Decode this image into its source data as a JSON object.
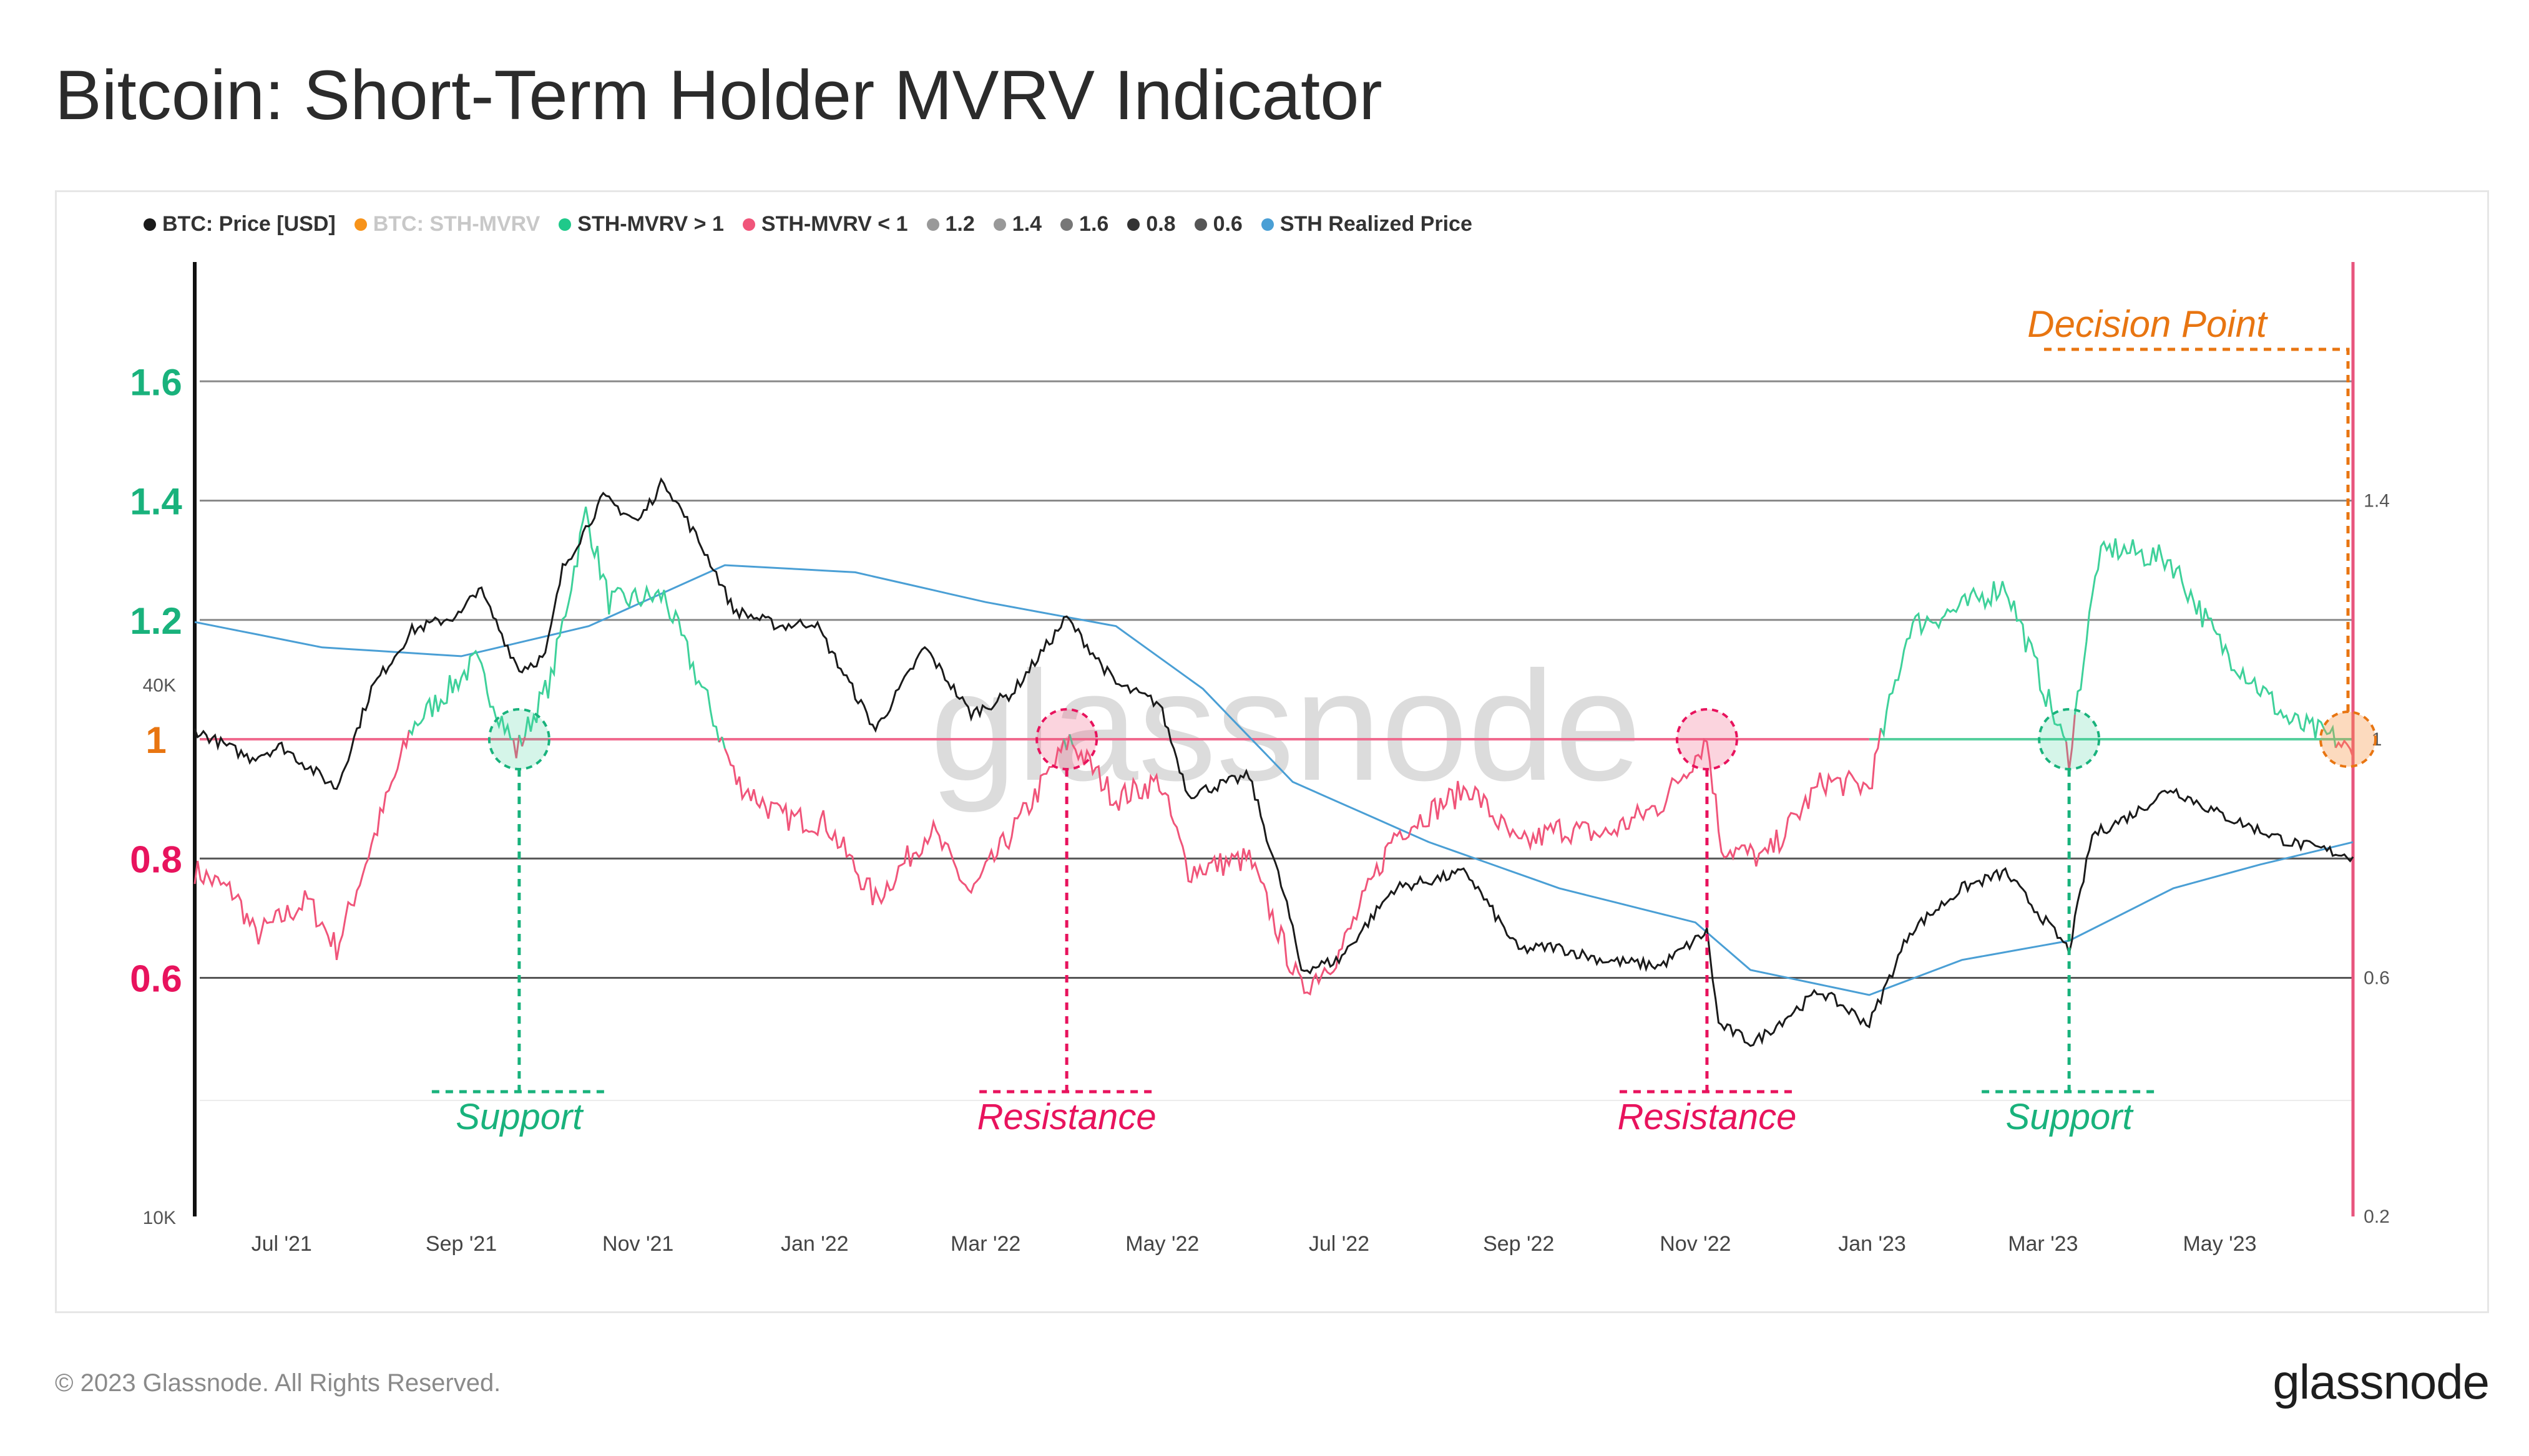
{
  "title": "Bitcoin: Short-Term Holder MVRV Indicator",
  "legend": [
    {
      "label": "BTC: Price [USD]",
      "color": "#1a1a1a"
    },
    {
      "label": "BTC: STH-MVRV",
      "color": "#f7931a",
      "muted": true
    },
    {
      "label": "STH-MVRV > 1",
      "color": "#1fc98a"
    },
    {
      "label": "STH-MVRV < 1",
      "color": "#f0557a"
    },
    {
      "label": "1.2",
      "color": "#999999"
    },
    {
      "label": "1.4",
      "color": "#999999"
    },
    {
      "label": "1.6",
      "color": "#777777"
    },
    {
      "label": "0.8",
      "color": "#333333"
    },
    {
      "label": "0.6",
      "color": "#555555"
    },
    {
      "label": "STH Realized Price",
      "color": "#4a9fd5"
    }
  ],
  "watermark": "glassnode",
  "copyright": "© 2023 Glassnode. All Rights Reserved.",
  "brand": "glassnode",
  "colors": {
    "green": "#19b27c",
    "pink": "#e8135d",
    "orange": "#e87511",
    "price": "#1a1a1a",
    "realized": "#4a9fd5",
    "mvrv_up": "#3ed19a",
    "mvrv_down": "#f0557a"
  },
  "chart_data": {
    "type": "line",
    "title": "Bitcoin: Short-Term Holder MVRV Indicator",
    "x_range": [
      "2021-06-01",
      "2023-06-16"
    ],
    "x_ticks": [
      {
        "label": "Jul '21",
        "date": "2021-07-01"
      },
      {
        "label": "Sep '21",
        "date": "2021-09-01"
      },
      {
        "label": "Nov '21",
        "date": "2021-11-01"
      },
      {
        "label": "Jan '22",
        "date": "2022-01-01"
      },
      {
        "label": "Mar '22",
        "date": "2022-03-01"
      },
      {
        "label": "May '22",
        "date": "2022-05-01"
      },
      {
        "label": "Jul '22",
        "date": "2022-07-01"
      },
      {
        "label": "Sep '22",
        "date": "2022-09-01"
      },
      {
        "label": "Nov '22",
        "date": "2022-11-01"
      },
      {
        "label": "Jan '23",
        "date": "2023-01-01"
      },
      {
        "label": "Mar '23",
        "date": "2023-03-01"
      },
      {
        "label": "May '23",
        "date": "2023-05-01"
      }
    ],
    "price_axis": {
      "scale": "log",
      "range": [
        10000,
        120000
      ],
      "ticks": [
        "40K",
        "10K"
      ],
      "tick_values": [
        40000,
        10000
      ]
    },
    "mvrv_axis": {
      "range": [
        0.2,
        1.8
      ],
      "right_ticks": [
        "1.4",
        "1",
        "0.6",
        "0.2"
      ],
      "right_tick_values": [
        1.4,
        1.0,
        0.6,
        0.2
      ]
    },
    "mvrv_levels": [
      {
        "label": "1.6",
        "value": 1.6,
        "color": "green"
      },
      {
        "label": "1.4",
        "value": 1.4,
        "color": "green"
      },
      {
        "label": "1.2",
        "value": 1.2,
        "color": "green"
      },
      {
        "label": "1",
        "value": 1.0,
        "color": "orange"
      },
      {
        "label": "0.8",
        "value": 0.8,
        "color": "pink"
      },
      {
        "label": "0.6",
        "value": 0.6,
        "color": "pink"
      }
    ],
    "series": [
      {
        "name": "BTC: Price [USD]",
        "axis": "price",
        "points": [
          [
            "2021-06-01",
            35500
          ],
          [
            "2021-06-20",
            33000
          ],
          [
            "2021-07-01",
            34000
          ],
          [
            "2021-07-20",
            30500
          ],
          [
            "2021-08-01",
            39500
          ],
          [
            "2021-08-15",
            46000
          ],
          [
            "2021-09-01",
            48000
          ],
          [
            "2021-09-07",
            51500
          ],
          [
            "2021-09-21",
            41500
          ],
          [
            "2021-09-30",
            43000
          ],
          [
            "2021-10-06",
            54000
          ],
          [
            "2021-10-20",
            65000
          ],
          [
            "2021-11-01",
            61000
          ],
          [
            "2021-11-10",
            68000
          ],
          [
            "2021-11-26",
            55000
          ],
          [
            "2021-12-04",
            48500
          ],
          [
            "2021-12-20",
            46500
          ],
          [
            "2022-01-01",
            47000
          ],
          [
            "2022-01-22",
            35500
          ],
          [
            "2022-02-08",
            44000
          ],
          [
            "2022-02-24",
            37000
          ],
          [
            "2022-03-10",
            39000
          ],
          [
            "2022-03-29",
            47500
          ],
          [
            "2022-04-15",
            40000
          ],
          [
            "2022-04-30",
            38000
          ],
          [
            "2022-05-10",
            30000
          ],
          [
            "2022-05-31",
            31500
          ],
          [
            "2022-06-13",
            22500
          ],
          [
            "2022-06-18",
            19000
          ],
          [
            "2022-07-01",
            19500
          ],
          [
            "2022-07-20",
            23500
          ],
          [
            "2022-08-14",
            24500
          ],
          [
            "2022-09-01",
            20000
          ],
          [
            "2022-09-13",
            20200
          ],
          [
            "2022-09-30",
            19500
          ],
          [
            "2022-10-20",
            19200
          ],
          [
            "2022-11-05",
            21000
          ],
          [
            "2022-11-09",
            16500
          ],
          [
            "2022-11-21",
            15700
          ],
          [
            "2022-12-14",
            18000
          ],
          [
            "2022-12-31",
            16500
          ],
          [
            "2023-01-14",
            21000
          ],
          [
            "2023-02-01",
            23500
          ],
          [
            "2023-02-16",
            24500
          ],
          [
            "2023-03-10",
            20000
          ],
          [
            "2023-03-18",
            27000
          ],
          [
            "2023-04-01",
            28500
          ],
          [
            "2023-04-14",
            30500
          ],
          [
            "2023-05-01",
            28500
          ],
          [
            "2023-05-25",
            26500
          ],
          [
            "2023-06-10",
            25800
          ],
          [
            "2023-06-16",
            25500
          ]
        ]
      },
      {
        "name": "STH Realized Price",
        "axis": "price",
        "points": [
          [
            "2021-06-01",
            47000
          ],
          [
            "2021-07-15",
            44000
          ],
          [
            "2021-09-01",
            43000
          ],
          [
            "2021-10-15",
            46500
          ],
          [
            "2021-12-01",
            54500
          ],
          [
            "2022-01-15",
            53500
          ],
          [
            "2022-03-01",
            49500
          ],
          [
            "2022-04-15",
            46500
          ],
          [
            "2022-05-15",
            39500
          ],
          [
            "2022-06-15",
            31000
          ],
          [
            "2022-08-01",
            26500
          ],
          [
            "2022-09-15",
            23500
          ],
          [
            "2022-11-01",
            21500
          ],
          [
            "2022-11-20",
            19000
          ],
          [
            "2022-12-31",
            17800
          ],
          [
            "2023-02-01",
            19500
          ],
          [
            "2023-03-10",
            20500
          ],
          [
            "2023-04-15",
            23500
          ],
          [
            "2023-05-15",
            25000
          ],
          [
            "2023-06-16",
            26500
          ]
        ]
      },
      {
        "name": "BTC: STH-MVRV",
        "axis": "mvrv",
        "points": [
          [
            "2021-06-01",
            0.78
          ],
          [
            "2021-06-15",
            0.74
          ],
          [
            "2021-06-22",
            0.67
          ],
          [
            "2021-07-10",
            0.73
          ],
          [
            "2021-07-20",
            0.65
          ],
          [
            "2021-08-05",
            0.88
          ],
          [
            "2021-08-15",
            1.02
          ],
          [
            "2021-09-06",
            1.13
          ],
          [
            "2021-09-20",
            0.98
          ],
          [
            "2021-10-02",
            1.1
          ],
          [
            "2021-10-14",
            1.38
          ],
          [
            "2021-10-22",
            1.23
          ],
          [
            "2021-11-10",
            1.24
          ],
          [
            "2021-11-26",
            1.05
          ],
          [
            "2021-12-05",
            0.93
          ],
          [
            "2021-12-20",
            0.87
          ],
          [
            "2022-01-05",
            0.86
          ],
          [
            "2022-01-22",
            0.73
          ],
          [
            "2022-02-10",
            0.85
          ],
          [
            "2022-02-24",
            0.74
          ],
          [
            "2022-03-15",
            0.88
          ],
          [
            "2022-03-30",
            1.0
          ],
          [
            "2022-04-15",
            0.9
          ],
          [
            "2022-04-30",
            0.93
          ],
          [
            "2022-05-10",
            0.78
          ],
          [
            "2022-05-31",
            0.8
          ],
          [
            "2022-06-18",
            0.58
          ],
          [
            "2022-07-01",
            0.64
          ],
          [
            "2022-07-20",
            0.84
          ],
          [
            "2022-08-15",
            0.92
          ],
          [
            "2022-09-01",
            0.82
          ],
          [
            "2022-09-15",
            0.85
          ],
          [
            "2022-10-01",
            0.84
          ],
          [
            "2022-10-20",
            0.89
          ],
          [
            "2022-11-05",
            1.0
          ],
          [
            "2022-11-10",
            0.82
          ],
          [
            "2022-11-25",
            0.8
          ],
          [
            "2022-12-15",
            0.93
          ],
          [
            "2022-12-31",
            0.92
          ],
          [
            "2023-01-14",
            1.19
          ],
          [
            "2023-02-01",
            1.22
          ],
          [
            "2023-02-16",
            1.26
          ],
          [
            "2023-03-10",
            0.97
          ],
          [
            "2023-03-20",
            1.3
          ],
          [
            "2023-03-25",
            1.32
          ],
          [
            "2023-04-14",
            1.3
          ],
          [
            "2023-05-01",
            1.16
          ],
          [
            "2023-05-25",
            1.03
          ],
          [
            "2023-06-10",
            1.0
          ],
          [
            "2023-06-16",
            0.97
          ]
        ]
      }
    ],
    "annotations": [
      {
        "label": "Support",
        "date": "2021-09-21",
        "color": "green"
      },
      {
        "label": "Resistance",
        "date": "2022-03-29",
        "color": "pink"
      },
      {
        "label": "Resistance",
        "date": "2022-11-05",
        "color": "pink"
      },
      {
        "label": "Support",
        "date": "2023-03-10",
        "color": "green"
      },
      {
        "label": "Decision Point",
        "date": "2023-06-16",
        "color": "orange"
      }
    ]
  }
}
